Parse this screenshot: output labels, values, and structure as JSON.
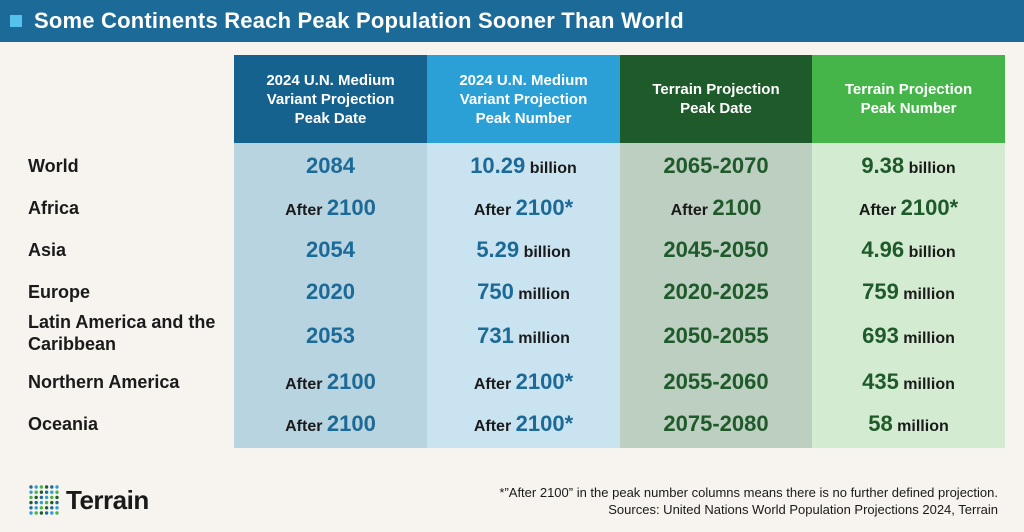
{
  "title": "Some Continents Reach Peak Population Sooner Than World",
  "colors": {
    "title_bar": "#1c6a97",
    "title_square": "#56c1ec",
    "un_date_header": "#16628e",
    "un_number_header": "#2ba0d6",
    "terrain_date_header": "#1e5a2a",
    "terrain_number_header": "#45b54a",
    "un_value_text": "#1c6a97",
    "terrain_value_text": "#1e5a2a"
  },
  "headers": {
    "un_date": "2024 U.N. Medium Variant Projection Peak Date",
    "un_number": "2024 U.N. Medium Variant Projection Peak Number",
    "terrain_date": "Terrain Projection Peak Date",
    "terrain_number": "Terrain Projection Peak Number"
  },
  "rows": [
    {
      "label": "World",
      "un_date": {
        "pre": "",
        "val": "2084"
      },
      "un_number": {
        "pre": "",
        "val": "10.29",
        "unit": " billion"
      },
      "terrain_date": {
        "pre": "",
        "val": "2065-2070"
      },
      "terrain_number": {
        "pre": "",
        "val": "9.38",
        "unit": " billion"
      }
    },
    {
      "label": "Africa",
      "un_date": {
        "pre": "After ",
        "val": "2100"
      },
      "un_number": {
        "pre": "After ",
        "val": "2100*",
        "unit": ""
      },
      "terrain_date": {
        "pre": "After ",
        "val": "2100"
      },
      "terrain_number": {
        "pre": "After ",
        "val": "2100*",
        "unit": ""
      }
    },
    {
      "label": "Asia",
      "un_date": {
        "pre": "",
        "val": "2054"
      },
      "un_number": {
        "pre": "",
        "val": "5.29",
        "unit": " billion"
      },
      "terrain_date": {
        "pre": "",
        "val": "2045-2050"
      },
      "terrain_number": {
        "pre": "",
        "val": "4.96",
        "unit": " billion"
      }
    },
    {
      "label": "Europe",
      "un_date": {
        "pre": "",
        "val": "2020"
      },
      "un_number": {
        "pre": "",
        "val": "750",
        "unit": " million"
      },
      "terrain_date": {
        "pre": "",
        "val": "2020-2025"
      },
      "terrain_number": {
        "pre": "",
        "val": "759",
        "unit": " million"
      }
    },
    {
      "label": "Latin America and the Caribbean",
      "un_date": {
        "pre": "",
        "val": "2053"
      },
      "un_number": {
        "pre": "",
        "val": "731",
        "unit": " million"
      },
      "terrain_date": {
        "pre": "",
        "val": "2050-2055"
      },
      "terrain_number": {
        "pre": "",
        "val": "693",
        "unit": " million"
      }
    },
    {
      "label": "Northern America",
      "un_date": {
        "pre": "After ",
        "val": "2100"
      },
      "un_number": {
        "pre": "After ",
        "val": "2100*",
        "unit": ""
      },
      "terrain_date": {
        "pre": "",
        "val": "2055-2060"
      },
      "terrain_number": {
        "pre": "",
        "val": "435",
        "unit": " million"
      }
    },
    {
      "label": "Oceania",
      "un_date": {
        "pre": "After ",
        "val": "2100"
      },
      "un_number": {
        "pre": "After ",
        "val": "2100*",
        "unit": ""
      },
      "terrain_date": {
        "pre": "",
        "val": "2075-2080"
      },
      "terrain_number": {
        "pre": "",
        "val": "58",
        "unit": " million"
      }
    }
  ],
  "footnote": "*”After 2100” in the peak number columns means there is no further defined projection.",
  "sources": "Sources: United Nations World Population Projections 2024, Terrain",
  "logo": {
    "text": "Terrain",
    "icon": "dot-grid-icon"
  }
}
